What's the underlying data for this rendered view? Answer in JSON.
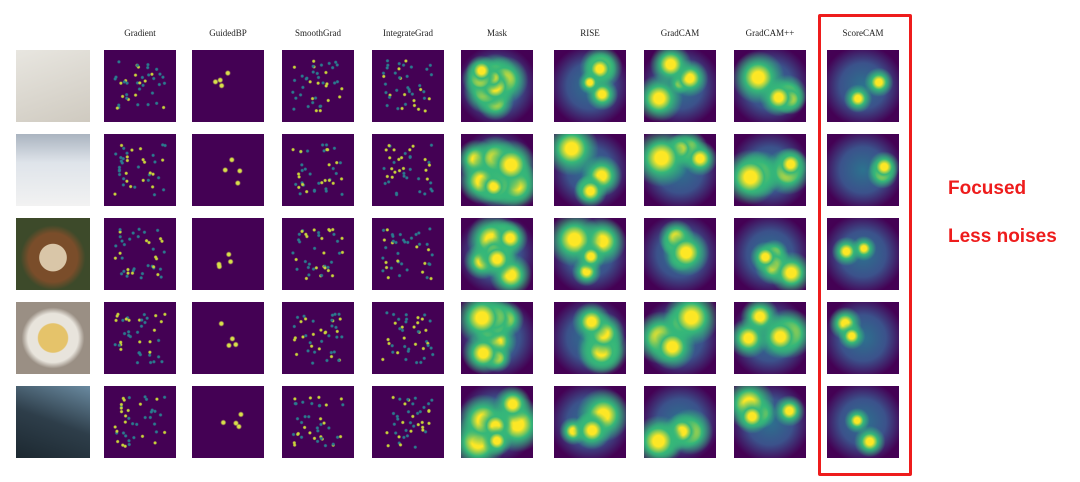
{
  "columns": [
    "Gradient",
    "GuidedBP",
    "SmoothGrad",
    "IntegrateGrad",
    "Mask",
    "RISE",
    "GradCAM",
    "GradCAM++",
    "ScoreCAM"
  ],
  "annotations": [
    "Focused",
    "Less noises"
  ]
}
